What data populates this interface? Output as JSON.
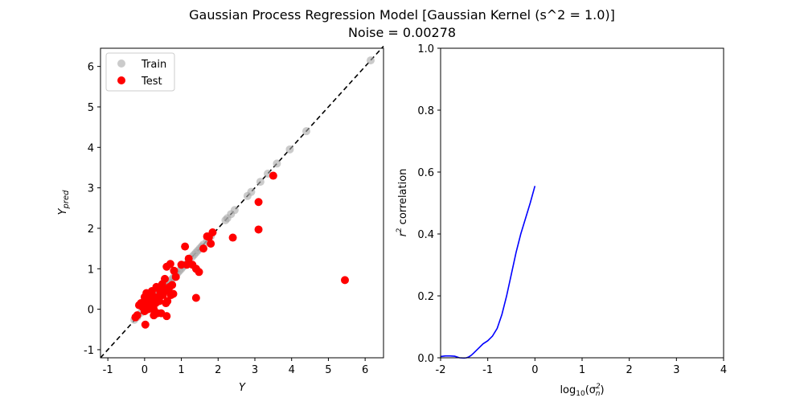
{
  "figure": {
    "title_line1": "Gaussian Process Regression Model [Gaussian Kernel (s^2 = 1.0)]",
    "title_line2": "Noise = 0.00278"
  },
  "chart_data": [
    {
      "type": "scatter",
      "xlabel": "Y",
      "ylabel": "Y",
      "ylabel_subscript": "pred",
      "xlim": [
        -1.2,
        6.5
      ],
      "ylim": [
        -1.2,
        6.45
      ],
      "xticks": [
        "-1",
        "0",
        "1",
        "2",
        "3",
        "4",
        "5",
        "6"
      ],
      "yticks": [
        "-1",
        "0",
        "1",
        "2",
        "3",
        "4",
        "5",
        "6"
      ],
      "grid": false,
      "legend": {
        "placement": "top-left",
        "entries": [
          "Train",
          "Test"
        ]
      },
      "reference_line": {
        "style": "dashed",
        "color": "#000000",
        "from": [
          -1.2,
          -1.2
        ],
        "to": [
          6.5,
          6.5
        ]
      },
      "series": [
        {
          "name": "Train",
          "color": "#a9a9a9",
          "alpha": 0.6,
          "points": [
            [
              -0.28,
              -0.26
            ],
            [
              -0.2,
              -0.19
            ],
            [
              -0.1,
              -0.09
            ],
            [
              0.0,
              0.01
            ],
            [
              0.05,
              0.06
            ],
            [
              0.1,
              0.1
            ],
            [
              0.15,
              0.15
            ],
            [
              0.2,
              0.2
            ],
            [
              0.25,
              0.25
            ],
            [
              0.3,
              0.3
            ],
            [
              0.35,
              0.35
            ],
            [
              0.4,
              0.4
            ],
            [
              0.45,
              0.45
            ],
            [
              0.5,
              0.5
            ],
            [
              0.55,
              0.55
            ],
            [
              0.6,
              0.6
            ],
            [
              0.65,
              0.65
            ],
            [
              0.7,
              0.7
            ],
            [
              0.75,
              0.75
            ],
            [
              0.8,
              0.8
            ],
            [
              0.85,
              0.85
            ],
            [
              0.9,
              0.9
            ],
            [
              0.95,
              0.95
            ],
            [
              1.0,
              1.0
            ],
            [
              1.05,
              1.05
            ],
            [
              1.1,
              1.1
            ],
            [
              1.2,
              1.2
            ],
            [
              1.3,
              1.3
            ],
            [
              1.35,
              1.35
            ],
            [
              1.4,
              1.4
            ],
            [
              1.45,
              1.45
            ],
            [
              1.5,
              1.5
            ],
            [
              1.55,
              1.55
            ],
            [
              1.6,
              1.6
            ],
            [
              1.7,
              1.7
            ],
            [
              1.8,
              1.8
            ],
            [
              2.2,
              2.2
            ],
            [
              2.25,
              2.25
            ],
            [
              2.35,
              2.35
            ],
            [
              2.45,
              2.45
            ],
            [
              2.8,
              2.8
            ],
            [
              2.9,
              2.9
            ],
            [
              3.15,
              3.15
            ],
            [
              3.35,
              3.35
            ],
            [
              3.6,
              3.6
            ],
            [
              3.95,
              3.95
            ],
            [
              4.4,
              4.4
            ],
            [
              6.15,
              6.15
            ]
          ]
        },
        {
          "name": "Test",
          "color": "#ff0000",
          "alpha": 1.0,
          "points": [
            [
              -0.25,
              -0.2
            ],
            [
              -0.2,
              -0.15
            ],
            [
              -0.15,
              0.1
            ],
            [
              -0.1,
              0.15
            ],
            [
              -0.05,
              0.05
            ],
            [
              0.0,
              0.3
            ],
            [
              0.0,
              -0.05
            ],
            [
              0.02,
              -0.38
            ],
            [
              0.05,
              0.4
            ],
            [
              0.08,
              0.2
            ],
            [
              0.1,
              0.0
            ],
            [
              0.12,
              0.1
            ],
            [
              0.15,
              0.25
            ],
            [
              0.18,
              0.38
            ],
            [
              0.2,
              0.45
            ],
            [
              0.22,
              0.1
            ],
            [
              0.25,
              0.0
            ],
            [
              0.25,
              -0.15
            ],
            [
              0.28,
              0.3
            ],
            [
              0.3,
              0.15
            ],
            [
              0.32,
              0.55
            ],
            [
              0.35,
              -0.1
            ],
            [
              0.38,
              0.3
            ],
            [
              0.4,
              0.2
            ],
            [
              0.42,
              0.45
            ],
            [
              0.45,
              -0.1
            ],
            [
              0.48,
              0.62
            ],
            [
              0.5,
              0.35
            ],
            [
              0.52,
              0.5
            ],
            [
              0.55,
              0.75
            ],
            [
              0.58,
              0.15
            ],
            [
              0.6,
              1.05
            ],
            [
              0.6,
              -0.17
            ],
            [
              0.62,
              0.2
            ],
            [
              0.65,
              0.45
            ],
            [
              0.68,
              0.55
            ],
            [
              0.7,
              1.12
            ],
            [
              0.72,
              0.35
            ],
            [
              0.75,
              0.6
            ],
            [
              0.78,
              0.38
            ],
            [
              0.8,
              0.95
            ],
            [
              0.85,
              0.8
            ],
            [
              1.0,
              1.1
            ],
            [
              1.1,
              1.55
            ],
            [
              1.15,
              1.1
            ],
            [
              1.2,
              1.25
            ],
            [
              1.3,
              1.1
            ],
            [
              1.4,
              1.0
            ],
            [
              1.4,
              0.28
            ],
            [
              1.48,
              0.92
            ],
            [
              1.6,
              1.5
            ],
            [
              1.7,
              1.8
            ],
            [
              1.75,
              1.78
            ],
            [
              1.8,
              1.62
            ],
            [
              1.85,
              1.9
            ],
            [
              2.4,
              1.77
            ],
            [
              3.1,
              2.65
            ],
            [
              3.1,
              1.97
            ],
            [
              3.5,
              3.3
            ],
            [
              5.45,
              0.72
            ]
          ]
        }
      ]
    },
    {
      "type": "line",
      "xlabel": "log",
      "xlabel_sub": "10",
      "xlabel_arg": "(σ",
      "xlabel_arg_sub": "n",
      "xlabel_arg_sup": "2",
      "xlabel_close": ")",
      "ylabel": "correlation",
      "ylabel_prefix": "r",
      "ylabel_sup": "2",
      "xlim": [
        -2,
        4
      ],
      "ylim": [
        0,
        1
      ],
      "xticks": [
        "-2",
        "-1",
        "0",
        "1",
        "2",
        "3",
        "4"
      ],
      "yticks": [
        "0.0",
        "0.2",
        "0.4",
        "0.6",
        "0.8",
        "1.0"
      ],
      "grid": false,
      "series": [
        {
          "color": "#0000ff",
          "x": [
            -2.0,
            -1.9,
            -1.8,
            -1.7,
            -1.6,
            -1.5,
            -1.45,
            -1.4,
            -1.35,
            -1.3,
            -1.2,
            -1.1,
            -1.0,
            -0.9,
            -0.8,
            -0.7,
            -0.6,
            -0.5,
            -0.4,
            -0.3,
            -0.2,
            -0.1,
            0.0
          ],
          "y": [
            0.004,
            0.006,
            0.006,
            0.005,
            0.0,
            -0.001,
            0.0,
            0.003,
            0.008,
            0.015,
            0.03,
            0.045,
            0.055,
            0.07,
            0.095,
            0.14,
            0.2,
            0.27,
            0.34,
            0.4,
            0.45,
            0.5,
            0.555
          ]
        }
      ]
    }
  ]
}
